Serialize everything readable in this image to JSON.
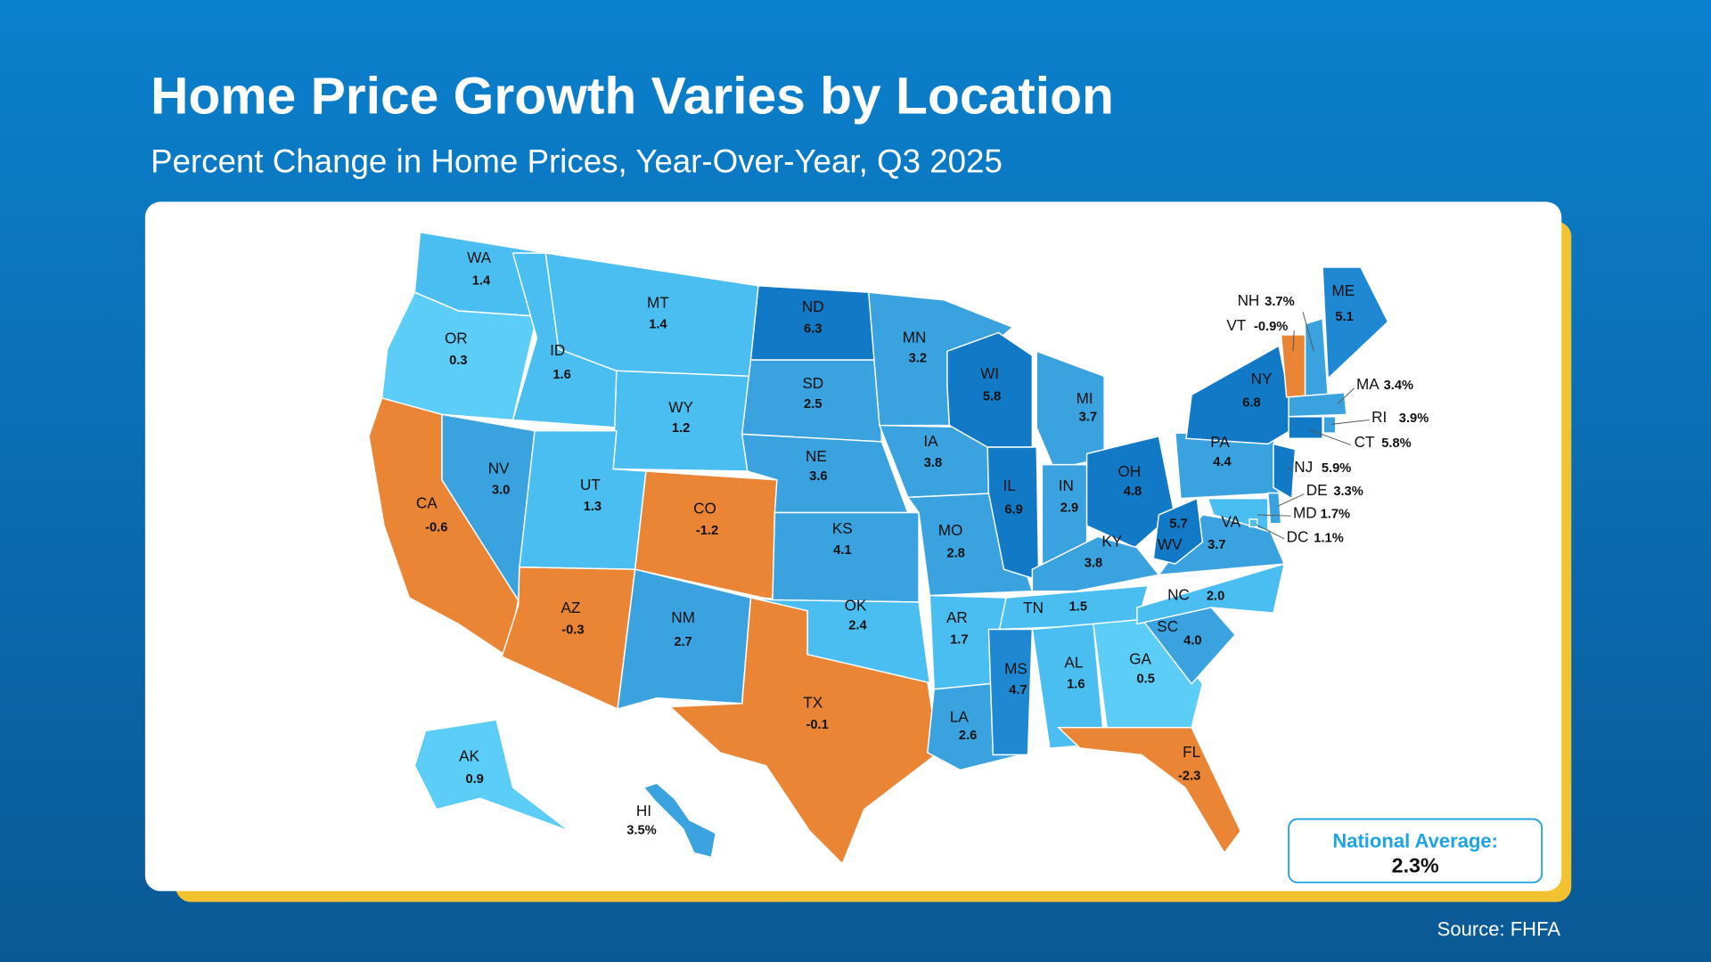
{
  "title": "Home Price Growth Varies by Location",
  "subtitle": "Percent Change in Home Prices, Year-Over-Year, Q3 2025",
  "source": "Source: FHFA",
  "national_average": {
    "label": "National Average:",
    "value": "2.3%"
  },
  "states": [
    {
      "code": "WA",
      "value": "1.4",
      "color": "#4bbef1"
    },
    {
      "code": "OR",
      "value": "0.3",
      "color": "#5ccdf7"
    },
    {
      "code": "CA",
      "value": "-0.6",
      "color": "#ea8535"
    },
    {
      "code": "NV",
      "value": "3.0",
      "color": "#3aa2df"
    },
    {
      "code": "ID",
      "value": "1.6",
      "color": "#4bbef1"
    },
    {
      "code": "MT",
      "value": "1.4",
      "color": "#4bbef1"
    },
    {
      "code": "WY",
      "value": "1.2",
      "color": "#4bbef1"
    },
    {
      "code": "UT",
      "value": "1.3",
      "color": "#4bbef1"
    },
    {
      "code": "CO",
      "value": "-1.2",
      "color": "#ea8535"
    },
    {
      "code": "AZ",
      "value": "-0.3",
      "color": "#ea8535"
    },
    {
      "code": "NM",
      "value": "2.7",
      "color": "#3aa2df"
    },
    {
      "code": "TX",
      "value": "-0.1",
      "color": "#ea8535"
    },
    {
      "code": "ND",
      "value": "6.3",
      "color": "#1279c6"
    },
    {
      "code": "SD",
      "value": "2.5",
      "color": "#3aa2df"
    },
    {
      "code": "NE",
      "value": "3.6",
      "color": "#3aa2df"
    },
    {
      "code": "KS",
      "value": "4.1",
      "color": "#3aa2df"
    },
    {
      "code": "OK",
      "value": "2.4",
      "color": "#4bbef1"
    },
    {
      "code": "MN",
      "value": "3.2",
      "color": "#3aa2df"
    },
    {
      "code": "IA",
      "value": "3.8",
      "color": "#3aa2df"
    },
    {
      "code": "MO",
      "value": "2.8",
      "color": "#3aa2df"
    },
    {
      "code": "AR",
      "value": "1.7",
      "color": "#4bbef1"
    },
    {
      "code": "LA",
      "value": "2.6",
      "color": "#3aa2df"
    },
    {
      "code": "WI",
      "value": "5.8",
      "color": "#1279c6"
    },
    {
      "code": "IL",
      "value": "6.9",
      "color": "#1279c6"
    },
    {
      "code": "MI",
      "value": "3.7",
      "color": "#3aa2df"
    },
    {
      "code": "IN",
      "value": "2.9",
      "color": "#3aa2df"
    },
    {
      "code": "OH",
      "value": "4.8",
      "color": "#1279c6"
    },
    {
      "code": "KY",
      "value": "3.8",
      "color": "#3aa2df"
    },
    {
      "code": "TN",
      "value": "1.5",
      "color": "#4bbef1"
    },
    {
      "code": "MS",
      "value": "4.7",
      "color": "#1f88d2"
    },
    {
      "code": "AL",
      "value": "1.6",
      "color": "#4bbef1"
    },
    {
      "code": "GA",
      "value": "0.5",
      "color": "#5ccdf7"
    },
    {
      "code": "FL",
      "value": "-2.3",
      "color": "#ea8535"
    },
    {
      "code": "SC",
      "value": "4.0",
      "color": "#3aa2df"
    },
    {
      "code": "NC",
      "value": "2.0",
      "color": "#4bbef1"
    },
    {
      "code": "VA",
      "value": "3.7",
      "color": "#3aa2df"
    },
    {
      "code": "WV",
      "value": "5.7",
      "color": "#1279c6"
    },
    {
      "code": "PA",
      "value": "4.4",
      "color": "#3aa2df"
    },
    {
      "code": "NY",
      "value": "6.8",
      "color": "#1279c6"
    },
    {
      "code": "ME",
      "value": "5.1",
      "color": "#1f88d2"
    },
    {
      "code": "AK",
      "value": "0.9",
      "color": "#5ccdf7"
    },
    {
      "code": "HI",
      "value": "3.5%",
      "color": "#3aa2df"
    },
    {
      "code": "NH",
      "value": "3.7%",
      "color": "#3aa2df"
    },
    {
      "code": "VT",
      "value": "-0.9%",
      "color": "#ea8535"
    },
    {
      "code": "MA",
      "value": "3.4%",
      "color": "#3aa2df"
    },
    {
      "code": "RI",
      "value": "3.9%",
      "color": "#3aa2df"
    },
    {
      "code": "CT",
      "value": "5.8%",
      "color": "#1279c6"
    },
    {
      "code": "NJ",
      "value": "5.9%",
      "color": "#1279c6"
    },
    {
      "code": "DE",
      "value": "3.3%",
      "color": "#3aa2df"
    },
    {
      "code": "MD",
      "value": "1.7%",
      "color": "#4bbef1"
    },
    {
      "code": "DC",
      "value": "1.1%",
      "color": "#4bbef1"
    }
  ]
}
